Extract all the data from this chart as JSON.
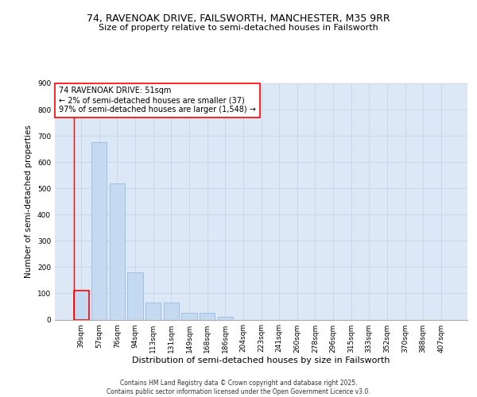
{
  "title_line1": "74, RAVENOAK DRIVE, FAILSWORTH, MANCHESTER, M35 9RR",
  "title_line2": "Size of property relative to semi-detached houses in Failsworth",
  "xlabel": "Distribution of semi-detached houses by size in Failsworth",
  "ylabel": "Number of semi-detached properties",
  "categories": [
    "39sqm",
    "57sqm",
    "76sqm",
    "94sqm",
    "113sqm",
    "131sqm",
    "149sqm",
    "168sqm",
    "186sqm",
    "204sqm",
    "223sqm",
    "241sqm",
    "260sqm",
    "278sqm",
    "296sqm",
    "315sqm",
    "333sqm",
    "352sqm",
    "370sqm",
    "388sqm",
    "407sqm"
  ],
  "values": [
    110,
    675,
    520,
    180,
    65,
    65,
    25,
    25,
    10,
    0,
    0,
    0,
    0,
    0,
    0,
    0,
    0,
    0,
    0,
    0,
    0
  ],
  "bar_color": "#c5d9f1",
  "bar_edge_color": "#8ab4e0",
  "highlight_bar_index": 0,
  "highlight_edge_color": "red",
  "annotation_text": "74 RAVENOAK DRIVE: 51sqm\n← 2% of semi-detached houses are smaller (37)\n97% of semi-detached houses are larger (1,548) →",
  "annotation_box_color": "white",
  "annotation_box_edge_color": "red",
  "ylim": [
    0,
    900
  ],
  "yticks": [
    0,
    100,
    200,
    300,
    400,
    500,
    600,
    700,
    800,
    900
  ],
  "grid_color": "#c8d8e8",
  "bg_color": "#dce8f5",
  "footer_line1": "Contains HM Land Registry data © Crown copyright and database right 2025.",
  "footer_line2": "Contains public sector information licensed under the Open Government Licence v3.0.",
  "title_fontsize": 9,
  "subtitle_fontsize": 8,
  "annotation_fontsize": 7,
  "tick_fontsize": 6.5,
  "ylabel_fontsize": 7.5,
  "xlabel_fontsize": 8,
  "footer_fontsize": 5.5
}
